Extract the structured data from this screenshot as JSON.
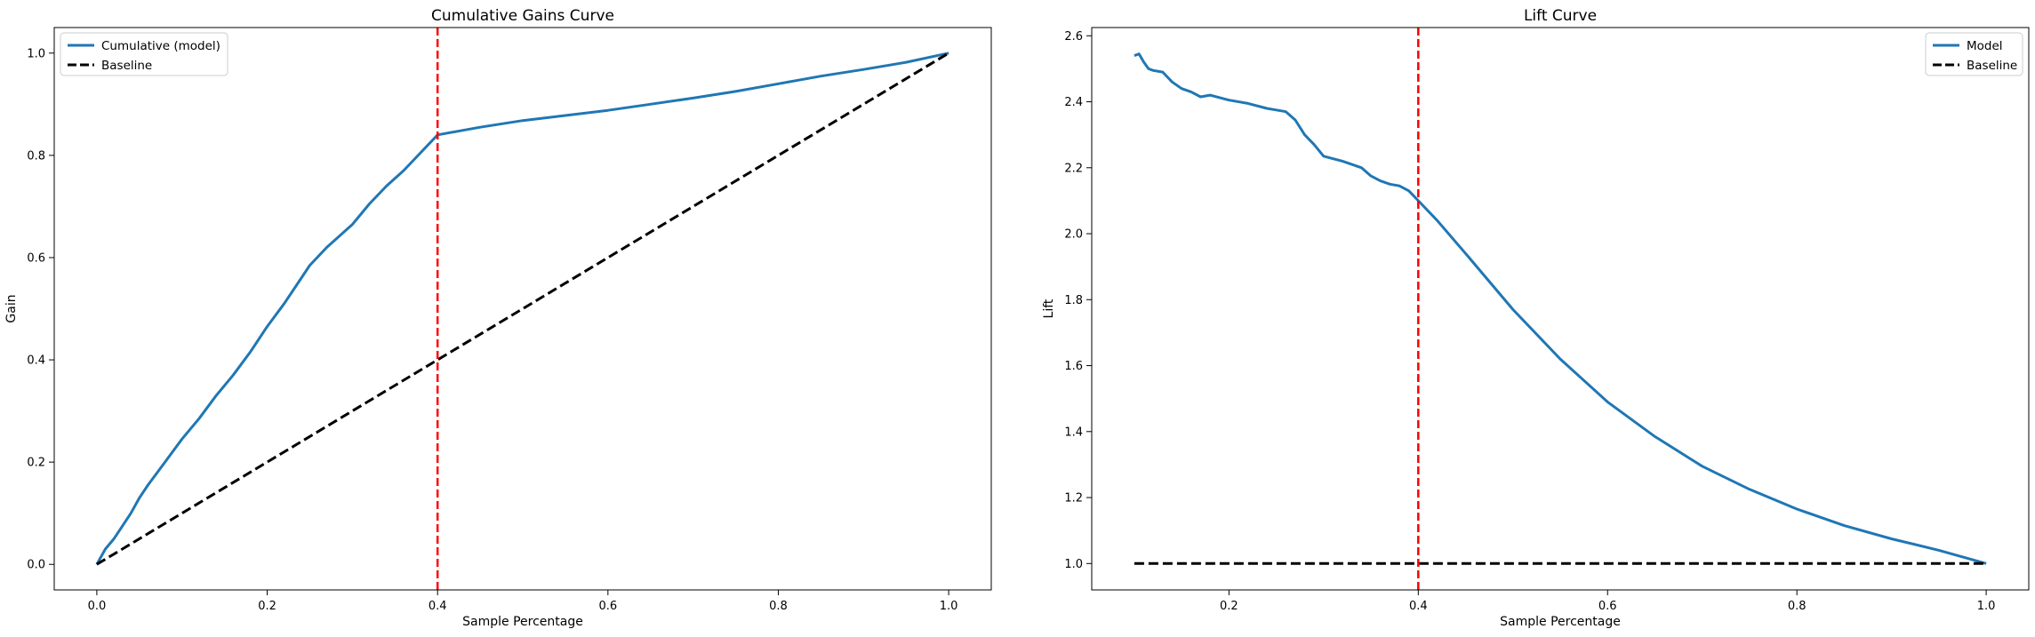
{
  "colors": {
    "model": "#1f77b4",
    "baseline": "#000000",
    "cutoff": "#ff0000"
  },
  "chart_data": [
    {
      "type": "line",
      "title": "Cumulative Gains Curve",
      "xlabel": "Sample Percentage",
      "ylabel": "Gain",
      "xlim": [
        -0.05,
        1.05
      ],
      "ylim": [
        -0.05,
        1.05
      ],
      "xticks": [
        "0.0",
        "0.2",
        "0.4",
        "0.6",
        "0.8",
        "1.0"
      ],
      "yticks": [
        "0.0",
        "0.2",
        "0.4",
        "0.6",
        "0.8",
        "1.0"
      ],
      "grid": false,
      "legend_position": "upper-left",
      "vline": 0.4,
      "series": [
        {
          "name": "Cumulative (model)",
          "style": "solid",
          "x": [
            0.0,
            0.01,
            0.02,
            0.03,
            0.04,
            0.05,
            0.06,
            0.08,
            0.1,
            0.12,
            0.14,
            0.16,
            0.18,
            0.2,
            0.22,
            0.24,
            0.25,
            0.27,
            0.3,
            0.32,
            0.34,
            0.36,
            0.38,
            0.4,
            0.45,
            0.5,
            0.55,
            0.6,
            0.65,
            0.7,
            0.75,
            0.8,
            0.85,
            0.9,
            0.95,
            1.0
          ],
          "y": [
            0.0,
            0.03,
            0.05,
            0.075,
            0.1,
            0.13,
            0.155,
            0.2,
            0.245,
            0.285,
            0.33,
            0.37,
            0.415,
            0.465,
            0.51,
            0.56,
            0.585,
            0.62,
            0.665,
            0.705,
            0.74,
            0.77,
            0.805,
            0.84,
            0.855,
            0.868,
            0.878,
            0.888,
            0.9,
            0.912,
            0.925,
            0.94,
            0.955,
            0.968,
            0.982,
            1.0
          ]
        },
        {
          "name": "Baseline",
          "style": "dashed",
          "x": [
            0.0,
            1.0
          ],
          "y": [
            0.0,
            1.0
          ]
        }
      ]
    },
    {
      "type": "line",
      "title": "Lift Curve",
      "xlabel": "Sample Percentage",
      "ylabel": "Lift",
      "xlim": [
        0.055,
        1.045
      ],
      "ylim": [
        0.92,
        2.625
      ],
      "xticks": [
        "0.2",
        "0.4",
        "0.6",
        "0.8",
        "1.0"
      ],
      "yticks": [
        "1.0",
        "1.2",
        "1.4",
        "1.6",
        "1.8",
        "2.0",
        "2.2",
        "2.4",
        "2.6"
      ],
      "grid": false,
      "legend_position": "upper-right",
      "vline": 0.4,
      "series": [
        {
          "name": "Model",
          "style": "solid",
          "x": [
            0.1,
            0.105,
            0.11,
            0.115,
            0.12,
            0.13,
            0.14,
            0.15,
            0.16,
            0.17,
            0.18,
            0.2,
            0.22,
            0.24,
            0.25,
            0.26,
            0.27,
            0.28,
            0.29,
            0.3,
            0.32,
            0.34,
            0.35,
            0.36,
            0.37,
            0.38,
            0.39,
            0.4,
            0.42,
            0.45,
            0.5,
            0.55,
            0.6,
            0.65,
            0.7,
            0.75,
            0.8,
            0.85,
            0.9,
            0.95,
            1.0
          ],
          "y": [
            2.54,
            2.545,
            2.52,
            2.5,
            2.495,
            2.49,
            2.46,
            2.44,
            2.43,
            2.415,
            2.42,
            2.405,
            2.395,
            2.38,
            2.375,
            2.37,
            2.345,
            2.3,
            2.27,
            2.235,
            2.22,
            2.2,
            2.175,
            2.16,
            2.15,
            2.145,
            2.13,
            2.1,
            2.04,
            1.94,
            1.77,
            1.62,
            1.49,
            1.385,
            1.295,
            1.225,
            1.165,
            1.115,
            1.075,
            1.04,
            1.0
          ]
        },
        {
          "name": "Baseline",
          "style": "dashed",
          "x": [
            0.1,
            1.0
          ],
          "y": [
            1.0,
            1.0
          ]
        }
      ]
    }
  ]
}
